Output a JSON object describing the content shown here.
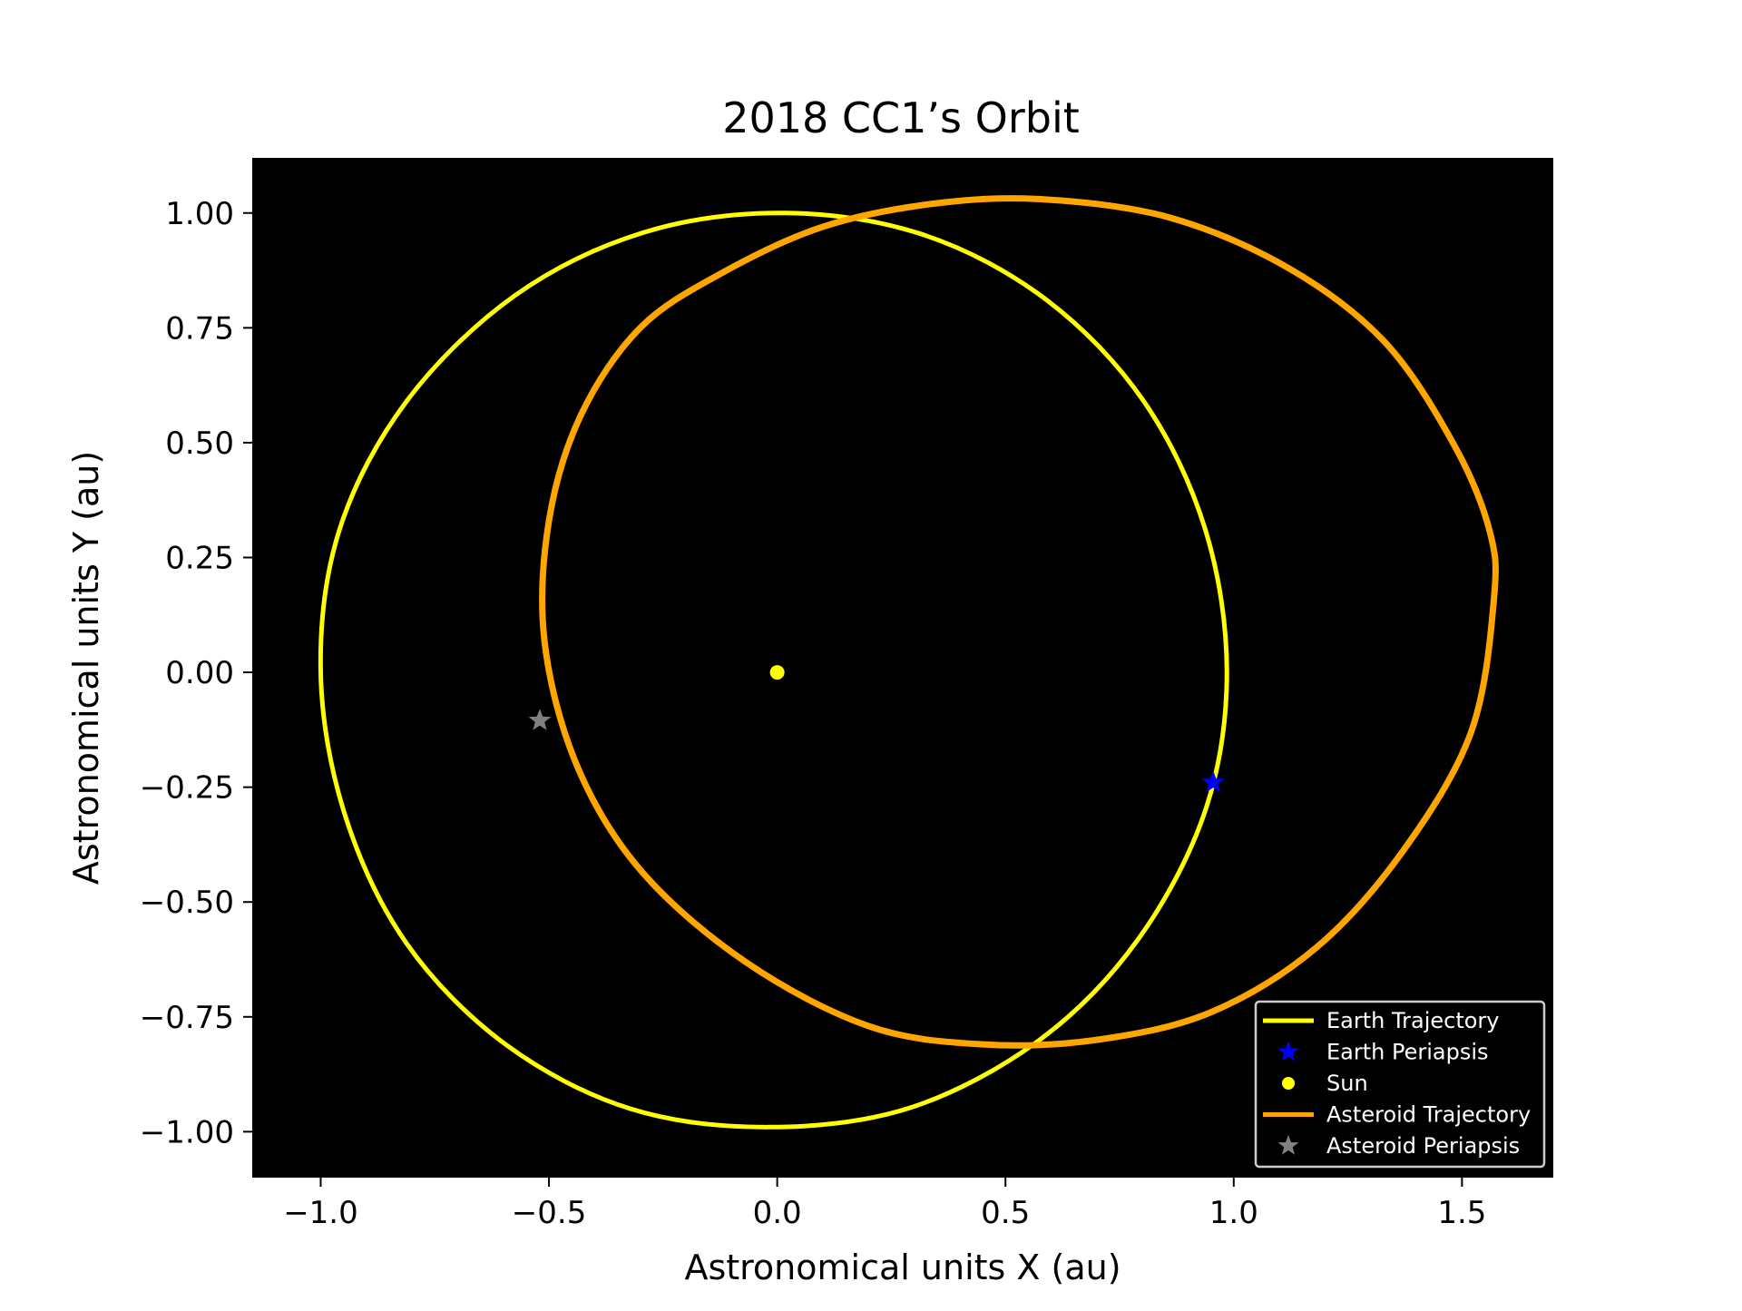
{
  "chart_data": {
    "type": "line",
    "title": "2018 CC1’s Orbit",
    "xlabel": "Astronomical units X (au)",
    "ylabel": "Astronomical units Y (au)",
    "xlim": [
      -1.15,
      1.7
    ],
    "ylim": [
      -1.1,
      1.12
    ],
    "background": "#000000",
    "grid": false,
    "legend_position": "lower-right",
    "xticks": [
      {
        "value": -1.0,
        "label": "−1.0"
      },
      {
        "value": -0.5,
        "label": "−0.5"
      },
      {
        "value": 0.0,
        "label": "0.0"
      },
      {
        "value": 0.5,
        "label": "0.5"
      },
      {
        "value": 1.0,
        "label": "1.0"
      },
      {
        "value": 1.5,
        "label": "1.5"
      }
    ],
    "yticks": [
      {
        "value": 1.0,
        "label": "1.00"
      },
      {
        "value": 0.75,
        "label": "0.75"
      },
      {
        "value": 0.5,
        "label": "0.50"
      },
      {
        "value": 0.25,
        "label": "0.25"
      },
      {
        "value": 0.0,
        "label": "0.00"
      },
      {
        "value": -0.25,
        "label": "−0.25"
      },
      {
        "value": -0.5,
        "label": "−0.50"
      },
      {
        "value": -0.75,
        "label": "−0.75"
      },
      {
        "value": -1.0,
        "label": "−1.00"
      }
    ],
    "series": [
      {
        "name": "Earth Trajectory",
        "kind": "line",
        "color": "#ffff00",
        "x": [
          0.985,
          0.938,
          0.803,
          0.591,
          0.322,
          0.018,
          -0.291,
          -0.575,
          -0.812,
          -0.959,
          -1.0,
          -0.947,
          -0.812,
          -0.595,
          -0.322,
          -0.018,
          0.291,
          0.575,
          0.79,
          0.938,
          0.985
        ],
        "y": [
          0.0,
          0.31,
          0.59,
          0.81,
          0.952,
          1.0,
          0.958,
          0.82,
          0.59,
          0.31,
          0.0,
          -0.31,
          -0.59,
          -0.81,
          -0.95,
          -0.99,
          -0.948,
          -0.8,
          -0.582,
          -0.3,
          0.0
        ]
      },
      {
        "name": "Earth Periapsis",
        "kind": "marker",
        "marker": "star",
        "color": "#0000ff",
        "x": [
          0.955
        ],
        "y": [
          -0.24
        ]
      },
      {
        "name": "Sun",
        "kind": "marker",
        "marker": "circle",
        "color": "#ffff00",
        "x": [
          0.0
        ],
        "y": [
          0.0
        ]
      },
      {
        "name": "Asteroid Trajectory",
        "kind": "line",
        "color": "#ffa500",
        "x": [
          1.57,
          1.52,
          1.37,
          1.18,
          0.95,
          0.7,
          0.45,
          0.2,
          -0.07,
          -0.3,
          -0.44,
          -0.51,
          -0.5,
          -0.43,
          -0.3,
          -0.12,
          0.1,
          0.34,
          0.58,
          0.86,
          1.12,
          1.33,
          1.48,
          1.56,
          1.57
        ],
        "y": [
          0.16,
          -0.13,
          -0.39,
          -0.6,
          -0.74,
          -0.8,
          -0.81,
          -0.77,
          -0.63,
          -0.43,
          -0.2,
          0.07,
          0.33,
          0.56,
          0.75,
          0.87,
          0.97,
          1.02,
          1.03,
          0.99,
          0.88,
          0.72,
          0.5,
          0.31,
          0.16
        ]
      },
      {
        "name": "Asteroid Periapsis",
        "kind": "marker",
        "marker": "star",
        "color": "#808080",
        "x": [
          -0.52
        ],
        "y": [
          -0.105
        ]
      }
    ]
  }
}
